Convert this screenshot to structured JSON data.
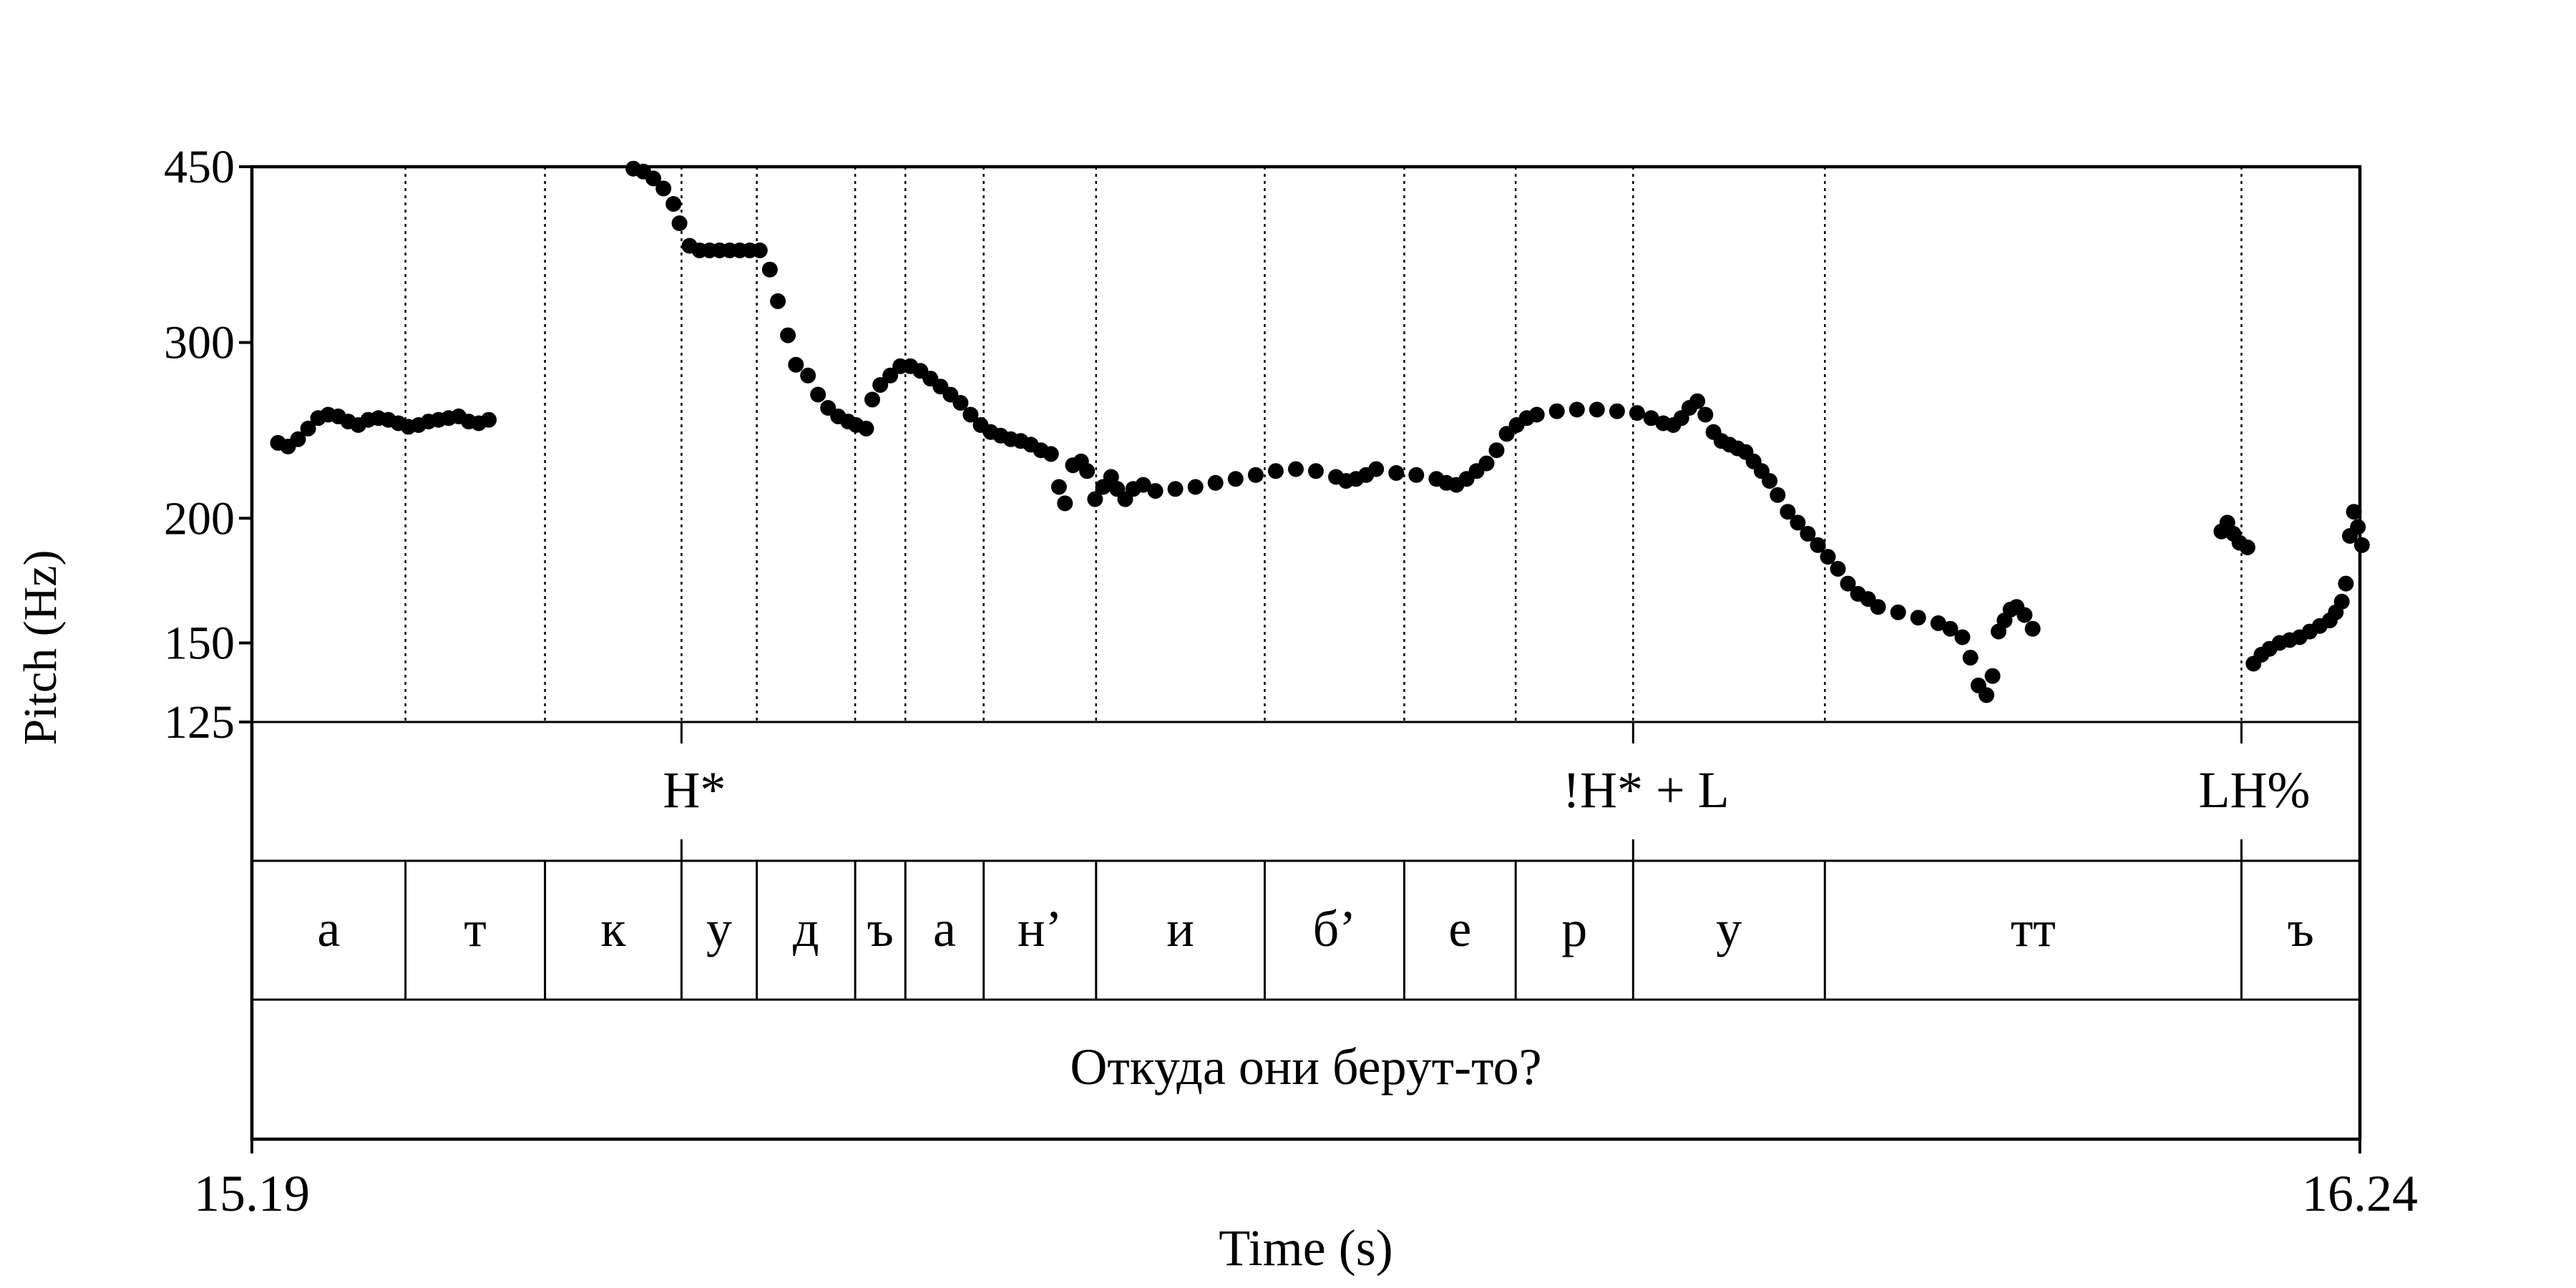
{
  "chart_data": {
    "type": "scatter",
    "title": "",
    "xlabel": "Time (s)",
    "ylabel": "Pitch (Hz)",
    "xlim": [
      15.19,
      16.24
    ],
    "ylim": [
      125,
      450
    ],
    "y_scale": "log",
    "y_ticks": [
      125,
      150,
      200,
      300,
      450
    ],
    "x_tick_labels": [
      "15.19",
      "16.24"
    ],
    "grid": false,
    "colors": {
      "points": "#000000",
      "lines": "#000000"
    },
    "boundaries": [
      15.2665,
      15.336,
      15.404,
      15.4415,
      15.4905,
      15.5155,
      15.5545,
      15.6105,
      15.6945,
      15.764,
      15.8195,
      15.878,
      15.9735,
      16.181
    ],
    "tones": [
      {
        "label": "H*",
        "t": 15.404
      },
      {
        "label": "!H* + L",
        "t": 15.878
      },
      {
        "label": "LH%",
        "t": 16.181
      }
    ],
    "segments": [
      {
        "label": "а",
        "start": 15.19,
        "end": 15.2665
      },
      {
        "label": "т",
        "start": 15.2665,
        "end": 15.336
      },
      {
        "label": "к",
        "start": 15.336,
        "end": 15.404
      },
      {
        "label": "у",
        "start": 15.404,
        "end": 15.4415
      },
      {
        "label": "д",
        "start": 15.4415,
        "end": 15.4905
      },
      {
        "label": "ъ",
        "start": 15.4905,
        "end": 15.5155
      },
      {
        "label": "а",
        "start": 15.5155,
        "end": 15.5545
      },
      {
        "label": "н’",
        "start": 15.5545,
        "end": 15.6105
      },
      {
        "label": "и",
        "start": 15.6105,
        "end": 15.6945
      },
      {
        "label": "б’",
        "start": 15.6945,
        "end": 15.764
      },
      {
        "label": "е",
        "start": 15.764,
        "end": 15.8195
      },
      {
        "label": "р",
        "start": 15.8195,
        "end": 15.878
      },
      {
        "label": "у",
        "start": 15.878,
        "end": 15.9735
      },
      {
        "label": "тт",
        "start": 15.9735,
        "end": 16.181
      },
      {
        "label": "ъ",
        "start": 16.181,
        "end": 16.24
      }
    ],
    "utterance": "Откуда они берут-то?",
    "pitch_tracks": [
      {
        "points": [
          [
            15.203,
            238
          ],
          [
            15.208,
            236
          ],
          [
            15.213,
            240
          ],
          [
            15.218,
            246
          ],
          [
            15.223,
            252
          ],
          [
            15.228,
            254
          ],
          [
            15.233,
            253
          ],
          [
            15.238,
            250
          ],
          [
            15.243,
            248
          ],
          [
            15.248,
            251
          ],
          [
            15.253,
            252
          ],
          [
            15.258,
            251
          ],
          [
            15.263,
            249
          ],
          [
            15.268,
            247
          ],
          [
            15.273,
            248
          ],
          [
            15.278,
            250
          ],
          [
            15.283,
            251
          ],
          [
            15.288,
            252
          ],
          [
            15.293,
            253
          ],
          [
            15.298,
            250
          ],
          [
            15.303,
            249
          ],
          [
            15.308,
            251
          ]
        ]
      },
      {
        "points": [
          [
            15.38,
            448
          ],
          [
            15.385,
            445
          ],
          [
            15.39,
            438
          ],
          [
            15.395,
            428
          ],
          [
            15.4,
            413
          ],
          [
            15.403,
            395
          ],
          [
            15.408,
            375
          ],
          [
            15.413,
            371
          ],
          [
            15.418,
            371
          ],
          [
            15.423,
            371
          ],
          [
            15.428,
            371
          ],
          [
            15.433,
            371
          ],
          [
            15.438,
            371
          ],
          [
            15.443,
            371
          ],
          [
            15.448,
            355
          ],
          [
            15.452,
            330
          ],
          [
            15.457,
            305
          ],
          [
            15.461,
            285
          ],
          [
            15.467,
            278
          ],
          [
            15.472,
            266
          ],
          [
            15.477,
            258
          ],
          [
            15.482,
            253
          ],
          [
            15.487,
            250
          ],
          [
            15.491,
            248
          ],
          [
            15.496,
            246
          ]
        ]
      },
      {
        "points": [
          [
            15.499,
            263
          ],
          [
            15.503,
            272
          ],
          [
            15.508,
            278
          ],
          [
            15.513,
            284
          ],
          [
            15.518,
            284
          ],
          [
            15.523,
            281
          ],
          [
            15.528,
            276
          ],
          [
            15.533,
            271
          ],
          [
            15.538,
            266
          ],
          [
            15.543,
            261
          ],
          [
            15.548,
            254
          ],
          [
            15.553,
            248
          ],
          [
            15.558,
            244
          ],
          [
            15.563,
            242
          ],
          [
            15.568,
            240
          ],
          [
            15.573,
            239
          ],
          [
            15.578,
            237
          ],
          [
            15.583,
            234
          ],
          [
            15.588,
            232
          ],
          [
            15.592,
            215
          ],
          [
            15.595,
            207
          ],
          [
            15.599,
            226
          ],
          [
            15.603,
            228
          ],
          [
            15.606,
            223
          ],
          [
            15.61,
            209
          ],
          [
            15.614,
            215
          ],
          [
            15.618,
            220
          ],
          [
            15.621,
            214
          ],
          [
            15.625,
            209
          ],
          [
            15.629,
            214
          ],
          [
            15.634,
            216
          ],
          [
            15.64,
            213
          ],
          [
            15.65,
            214
          ],
          [
            15.66,
            215
          ],
          [
            15.67,
            217
          ],
          [
            15.68,
            219
          ],
          [
            15.69,
            221
          ],
          [
            15.7,
            223
          ],
          [
            15.71,
            224
          ],
          [
            15.72,
            223
          ],
          [
            15.73,
            220
          ],
          [
            15.735,
            218
          ],
          [
            15.74,
            219
          ],
          [
            15.745,
            221
          ],
          [
            15.75,
            224
          ],
          [
            15.76,
            222
          ],
          [
            15.77,
            221
          ],
          [
            15.78,
            219
          ],
          [
            15.785,
            217
          ],
          [
            15.79,
            216
          ],
          [
            15.795,
            219
          ],
          [
            15.8,
            223
          ],
          [
            15.805,
            227
          ],
          [
            15.81,
            234
          ],
          [
            15.815,
            243
          ],
          [
            15.82,
            248
          ],
          [
            15.825,
            252
          ],
          [
            15.83,
            254
          ],
          [
            15.84,
            256
          ],
          [
            15.85,
            257
          ],
          [
            15.86,
            257
          ],
          [
            15.87,
            256
          ],
          [
            15.88,
            255
          ],
          [
            15.887,
            252
          ],
          [
            15.893,
            249
          ],
          [
            15.898,
            248
          ],
          [
            15.902,
            252
          ],
          [
            15.906,
            258
          ],
          [
            15.91,
            262
          ],
          [
            15.914,
            254
          ],
          [
            15.918,
            244
          ],
          [
            15.922,
            239
          ],
          [
            15.926,
            237
          ],
          [
            15.93,
            235
          ],
          [
            15.934,
            233
          ],
          [
            15.938,
            228
          ],
          [
            15.942,
            223
          ],
          [
            15.946,
            218
          ],
          [
            15.95,
            211
          ],
          [
            15.955,
            203
          ],
          [
            15.96,
            198
          ],
          [
            15.965,
            193
          ],
          [
            15.97,
            188
          ],
          [
            15.975,
            183
          ],
          [
            15.98,
            178
          ],
          [
            15.985,
            172
          ],
          [
            15.99,
            168
          ],
          [
            15.995,
            166
          ],
          [
            16.0,
            163
          ],
          [
            16.01,
            161
          ],
          [
            16.02,
            159
          ],
          [
            16.03,
            157
          ],
          [
            16.036,
            155
          ],
          [
            16.042,
            152
          ],
          [
            16.046,
            145
          ],
          [
            16.05,
            136
          ],
          [
            16.054,
            133
          ],
          [
            16.057,
            139
          ],
          [
            16.06,
            154
          ],
          [
            16.063,
            158
          ],
          [
            16.066,
            162
          ],
          [
            16.069,
            163
          ],
          [
            16.073,
            160
          ],
          [
            16.077,
            155
          ]
        ]
      },
      {
        "points": [
          [
            16.171,
            194
          ],
          [
            16.174,
            198
          ],
          [
            16.177,
            193
          ],
          [
            16.18,
            189
          ],
          [
            16.184,
            187
          ]
        ]
      },
      {
        "points": [
          [
            16.187,
            143
          ],
          [
            16.191,
            146
          ],
          [
            16.195,
            148
          ],
          [
            16.2,
            150
          ],
          [
            16.205,
            151
          ],
          [
            16.21,
            152
          ],
          [
            16.215,
            154
          ],
          [
            16.22,
            156
          ],
          [
            16.225,
            158
          ],
          [
            16.228,
            161
          ],
          [
            16.231,
            165
          ],
          [
            16.233,
            172
          ],
          [
            16.235,
            192
          ],
          [
            16.237,
            203
          ],
          [
            16.239,
            196
          ],
          [
            16.241,
            188
          ]
        ]
      }
    ]
  }
}
